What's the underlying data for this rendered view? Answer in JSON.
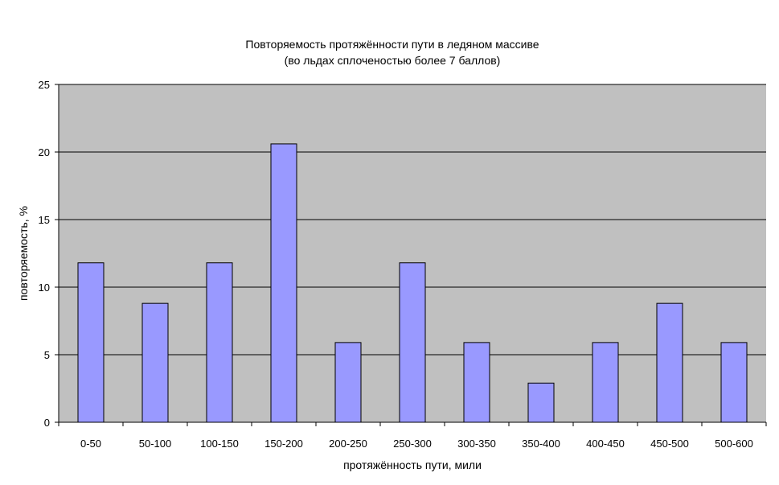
{
  "chart_data": {
    "type": "bar",
    "title": "Повторяемость протяжённости пути в ледяном массиве",
    "subtitle": "(во льдах сплоченостью более 7 баллов)",
    "xlabel": "протяжённость пути, мили",
    "ylabel": "повторяемость, %",
    "categories": [
      "0-50",
      "50-100",
      "100-150",
      "150-200",
      "200-250",
      "250-300",
      "300-350",
      "350-400",
      "400-450",
      "450-500",
      "500-600"
    ],
    "values": [
      11.8,
      8.8,
      11.8,
      20.6,
      5.9,
      11.8,
      5.9,
      2.9,
      5.9,
      8.8,
      5.9
    ],
    "ylim": [
      0,
      25
    ],
    "yticks": [
      "0",
      "5",
      "10",
      "15",
      "20",
      "25"
    ],
    "grid": true,
    "legend": "none",
    "colors": {
      "bar_fill": "#9999ff",
      "bar_stroke": "#000000",
      "plot_background": "#c0c0c0",
      "gridline": "#000000"
    }
  }
}
